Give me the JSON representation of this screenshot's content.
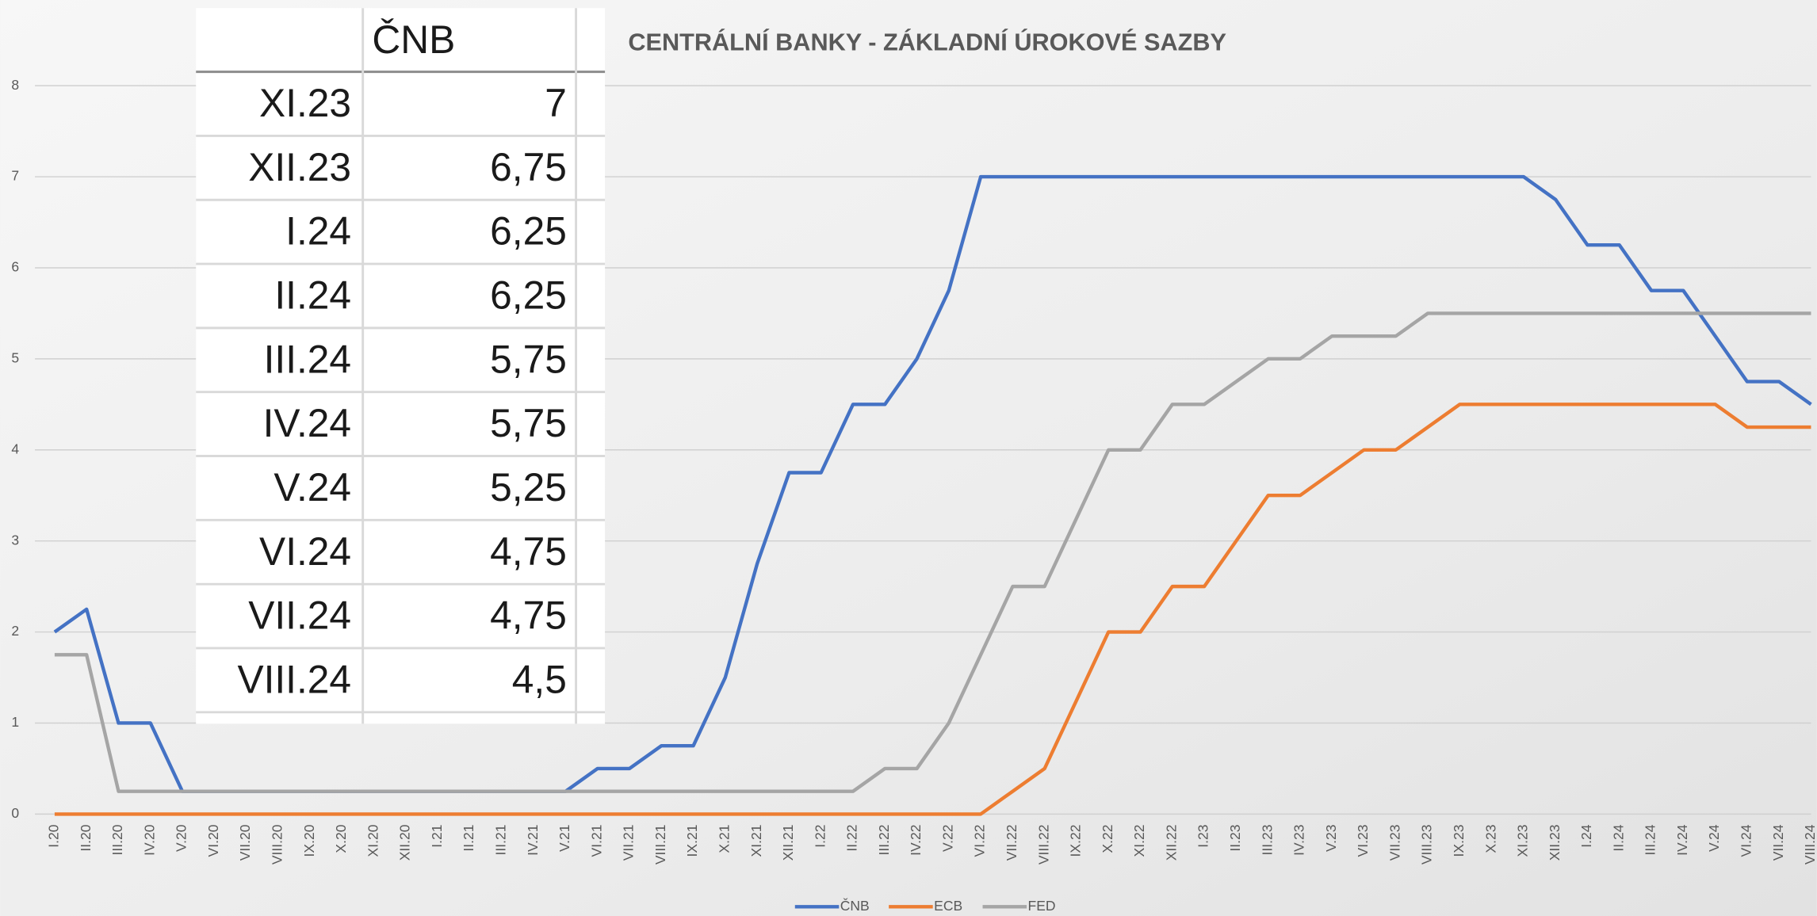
{
  "chart_data": {
    "type": "line",
    "title": "CENTRÁLNÍ BANKY - ZÁKLADNÍ ÚROKOVÉ SAZBY",
    "categories": [
      "I.20",
      "II.20",
      "III.20",
      "IV.20",
      "V.20",
      "VI.20",
      "VII.20",
      "VIII.20",
      "IX.20",
      "X.20",
      "XI.20",
      "XII.20",
      "I.21",
      "II.21",
      "III.21",
      "IV.21",
      "V.21",
      "VI.21",
      "VII.21",
      "VIII.21",
      "IX.21",
      "X.21",
      "XI.21",
      "XII.21",
      "I.22",
      "II.22",
      "III.22",
      "IV.22",
      "V.22",
      "VI.22",
      "VII.22",
      "VIII.22",
      "IX.22",
      "X.22",
      "XI.22",
      "XII.22",
      "I.23",
      "II.23",
      "III.23",
      "IV.23",
      "V.23",
      "VI.23",
      "VII.23",
      "VIII.23",
      "IX.23",
      "X.23",
      "XI.23",
      "XII.23",
      "I.24",
      "II.24",
      "III.24",
      "IV.24",
      "V.24",
      "VI.24",
      "VII.24",
      "VIII.24"
    ],
    "series": [
      {
        "name": "ČNB",
        "color": "#4472c4",
        "values": [
          2,
          2.25,
          1,
          1,
          0.25,
          0.25,
          0.25,
          0.25,
          0.25,
          0.25,
          0.25,
          0.25,
          0.25,
          0.25,
          0.25,
          0.25,
          0.25,
          0.5,
          0.5,
          0.75,
          0.75,
          1.5,
          2.75,
          3.75,
          3.75,
          4.5,
          4.5,
          5,
          5.75,
          7,
          7,
          7,
          7,
          7,
          7,
          7,
          7,
          7,
          7,
          7,
          7,
          7,
          7,
          7,
          7,
          7,
          7,
          6.75,
          6.25,
          6.25,
          5.75,
          5.75,
          5.25,
          4.75,
          4.75,
          4.5
        ]
      },
      {
        "name": "ECB",
        "color": "#ed7d31",
        "values": [
          0,
          0,
          0,
          0,
          0,
          0,
          0,
          0,
          0,
          0,
          0,
          0,
          0,
          0,
          0,
          0,
          0,
          0,
          0,
          0,
          0,
          0,
          0,
          0,
          0,
          0,
          0,
          0,
          0,
          0,
          0.25,
          0.5,
          1.25,
          2,
          2,
          2.5,
          2.5,
          3,
          3.5,
          3.5,
          3.75,
          4,
          4,
          4.25,
          4.5,
          4.5,
          4.5,
          4.5,
          4.5,
          4.5,
          4.5,
          4.5,
          4.5,
          4.25,
          4.25,
          4.25
        ]
      },
      {
        "name": "FED",
        "color": "#a5a5a5",
        "values": [
          1.75,
          1.75,
          0.25,
          0.25,
          0.25,
          0.25,
          0.25,
          0.25,
          0.25,
          0.25,
          0.25,
          0.25,
          0.25,
          0.25,
          0.25,
          0.25,
          0.25,
          0.25,
          0.25,
          0.25,
          0.25,
          0.25,
          0.25,
          0.25,
          0.25,
          0.25,
          0.5,
          0.5,
          1,
          1.75,
          2.5,
          2.5,
          3.25,
          4,
          4,
          4.5,
          4.5,
          4.75,
          5,
          5,
          5.25,
          5.25,
          5.25,
          5.5,
          5.5,
          5.5,
          5.5,
          5.5,
          5.5,
          5.5,
          5.5,
          5.5,
          5.5,
          5.5,
          5.5,
          5.5
        ]
      }
    ],
    "ylim": [
      0,
      8
    ],
    "yticks": [
      0,
      1,
      2,
      3,
      4,
      5,
      6,
      7,
      8
    ],
    "grid": true,
    "legend": "bottom"
  },
  "table": {
    "header": "ČNB",
    "rows": [
      [
        "XI.23",
        "7"
      ],
      [
        "XII.23",
        "6,75"
      ],
      [
        "I.24",
        "6,25"
      ],
      [
        "II.24",
        "6,25"
      ],
      [
        "III.24",
        "5,75"
      ],
      [
        "IV.24",
        "5,75"
      ],
      [
        "V.24",
        "5,25"
      ],
      [
        "VI.24",
        "4,75"
      ],
      [
        "VII.24",
        "4,75"
      ],
      [
        "VIII.24",
        "4,5"
      ]
    ]
  }
}
